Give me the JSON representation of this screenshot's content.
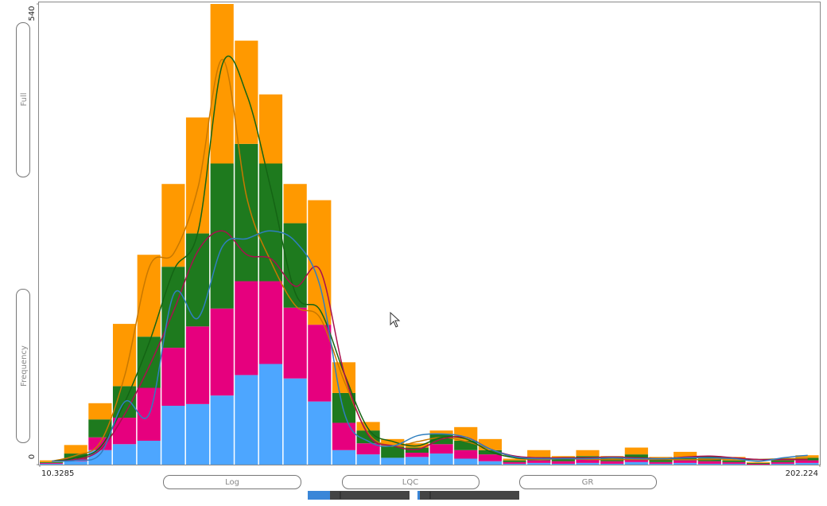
{
  "chart_data": {
    "type": "histogram",
    "bins": [
      10.3285,
      16.33,
      22.32,
      28.32,
      34.32,
      40.32,
      46.31,
      52.31,
      58.31,
      64.3,
      70.3,
      76.3,
      82.29,
      88.29,
      94.28,
      100.28,
      106.28,
      112.27,
      118.27,
      124.27,
      130.26,
      136.26,
      142.26,
      148.25,
      154.25,
      160.25,
      166.24,
      172.24,
      178.24,
      184.23,
      190.23,
      196.23,
      202.224
    ],
    "series": [
      {
        "color": "#4da6ff",
        "values": [
          1,
          4,
          17,
          24,
          28,
          69,
          71,
          81,
          105,
          118,
          101,
          74,
          17,
          12,
          8,
          9,
          13,
          7,
          4,
          1,
          2,
          1,
          2,
          1,
          3,
          1,
          2,
          1,
          1,
          0,
          1,
          2
        ]
      },
      {
        "color": "#e6007e",
        "values": [
          1,
          3,
          15,
          31,
          62,
          68,
          91,
          102,
          110,
          97,
          83,
          90,
          32,
          13,
          0,
          5,
          11,
          10,
          8,
          2,
          3,
          3,
          4,
          3,
          4,
          2,
          3,
          3,
          2,
          1,
          2,
          3
        ]
      },
      {
        "color": "#1e7a1e",
        "values": [
          1,
          6,
          21,
          37,
          60,
          95,
          109,
          170,
          161,
          138,
          99,
          0,
          35,
          15,
          13,
          6,
          12,
          11,
          5,
          2,
          4,
          3,
          4,
          3,
          5,
          3,
          4,
          3,
          2,
          1,
          2,
          3
        ]
      },
      {
        "color": "#ff9900",
        "values": [
          2,
          10,
          19,
          73,
          96,
          97,
          136,
          187,
          121,
          81,
          46,
          146,
          36,
          10,
          9,
          5,
          4,
          16,
          13,
          2,
          8,
          3,
          7,
          3,
          8,
          3,
          6,
          3,
          4,
          1,
          2,
          3
        ]
      }
    ],
    "curves": [
      {
        "color": "#c87800",
        "values": [
          4,
          11,
          27,
          106,
          232,
          248,
          326,
          475,
          312,
          237,
          186,
          172,
          97,
          36,
          22,
          27,
          32,
          27,
          18,
          8,
          6,
          7,
          6,
          6,
          6,
          6,
          6,
          6,
          7,
          6,
          7,
          7
        ]
      },
      {
        "color": "#146414",
        "values": [
          4,
          8,
          21,
          74,
          144,
          228,
          274,
          470,
          433,
          321,
          200,
          181,
          106,
          41,
          27,
          22,
          32,
          30,
          15,
          8,
          7,
          8,
          8,
          9,
          8,
          7,
          8,
          9,
          7,
          6,
          6,
          6
        ]
      },
      {
        "color": "#a8104e",
        "values": [
          4,
          6,
          18,
          60,
          116,
          181,
          251,
          274,
          246,
          241,
          209,
          228,
          106,
          34,
          22,
          18,
          30,
          32,
          18,
          10,
          8,
          8,
          8,
          9,
          8,
          7,
          9,
          10,
          8,
          6,
          6,
          6
        ]
      },
      {
        "color": "#2f7fc0",
        "values": [
          4,
          5,
          13,
          74,
          60,
          200,
          172,
          256,
          265,
          274,
          261,
          209,
          60,
          27,
          22,
          34,
          36,
          32,
          18,
          9,
          7,
          7,
          7,
          8,
          7,
          7,
          8,
          8,
          7,
          4,
          8,
          11
        ]
      }
    ],
    "xlim": [
      10.3285,
      202.224
    ],
    "xticks": [
      10.3285,
      202.224
    ],
    "ylim": [
      0,
      540
    ],
    "yticks": [
      0,
      540
    ]
  },
  "controls": {
    "full": "Full",
    "frequency": "Frequency",
    "log": "Log",
    "lqc": "LQC",
    "gr": "GR"
  }
}
